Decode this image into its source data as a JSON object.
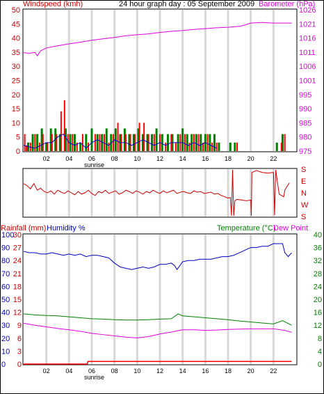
{
  "header": {
    "windspeed_label": "Windspeed (kmh)",
    "title": "24 hour graph day : 05 September 2009",
    "barometer_label": "Barometer (hPa)"
  },
  "bottom_header": {
    "rainfall_label": "Rainfall (mm)",
    "humidity_label": "Humidity %",
    "temperature_label": "Temperature (°C)",
    "dewpoint_label": "Dew Point"
  },
  "x_ticks": [
    "02",
    "04",
    "06",
    "08",
    "10",
    "12",
    "14",
    "16",
    "18",
    "20",
    "22"
  ],
  "sunrise_label": "sunrise",
  "colors": {
    "wind": "#ff0000",
    "baro": "#e000e0",
    "gust": "#008000",
    "avgwind": "#0000cc",
    "humidity": "#0000c0",
    "temperature": "#008000",
    "dewpoint": "#e000e0",
    "rain": "#ff0000",
    "grid": "#d8d8d8",
    "direction": "#cc0000"
  },
  "chart_data": [
    {
      "type": "bar",
      "title": "24 hour graph day : 05 September 2009",
      "ylabel": "Windspeed (kmh)",
      "y2label": "Barometer (hPa)",
      "xlim": [
        0,
        24
      ],
      "ylim": [
        0,
        50
      ],
      "y_ticks": [
        "0",
        "5",
        "10",
        "15",
        "20",
        "25",
        "30",
        "35",
        "40",
        "45",
        "50"
      ],
      "y2lim": [
        975,
        1026
      ],
      "y2_ticks": [
        "975",
        "980",
        "985",
        "990",
        "995",
        "1001",
        "1006",
        "1011",
        "1016",
        "1021",
        "1026"
      ],
      "grid": true,
      "series": [
        {
          "name": "Windspeed (kmh)",
          "x": [
            0.1,
            0.25,
            0.6,
            1.0,
            1.4,
            1.7,
            2.1,
            2.5,
            2.9,
            3.3,
            3.6,
            3.9,
            4.3,
            4.7,
            5.2,
            5.7,
            6.3,
            6.7,
            7.1,
            7.5,
            7.9,
            8.3,
            8.6,
            9.0,
            9.4,
            9.8,
            10.2,
            10.6,
            11.0,
            11.5,
            12.0,
            12.5,
            13.0,
            13.4,
            13.8,
            14.2,
            14.6,
            15.0,
            15.4,
            15.8,
            16.2,
            16.6,
            17.0,
            18.8,
            22.7,
            23.0
          ],
          "values": [
            6,
            2,
            3,
            6,
            3,
            6,
            3,
            6,
            6,
            14,
            18,
            6,
            6,
            3,
            6,
            3,
            6,
            6,
            6,
            3,
            6,
            10,
            6,
            6,
            6,
            6,
            10,
            10,
            6,
            6,
            6,
            3,
            6,
            3,
            6,
            6,
            3,
            6,
            6,
            3,
            6,
            3,
            3,
            3,
            3,
            6
          ]
        },
        {
          "name": "Gust",
          "x": [
            0.4,
            0.8,
            1.2,
            1.6,
            2.0,
            2.4,
            2.8,
            3.2,
            3.7,
            4.1,
            4.5,
            5.0,
            5.5,
            6.0,
            6.5,
            6.9,
            7.3,
            7.7,
            8.1,
            8.5,
            8.9,
            9.3,
            9.7,
            10.1,
            10.5,
            10.9,
            11.3,
            11.7,
            12.2,
            12.7,
            13.1,
            13.6,
            14.0,
            14.4,
            14.8,
            15.2,
            15.6,
            16.0,
            16.4,
            16.8,
            17.2,
            18.2,
            18.6,
            22.3,
            22.8
          ],
          "values": [
            3,
            6,
            6,
            8,
            3,
            8,
            8,
            6,
            8,
            6,
            6,
            3,
            6,
            8,
            6,
            6,
            8,
            6,
            8,
            6,
            8,
            6,
            6,
            8,
            6,
            6,
            6,
            8,
            6,
            6,
            6,
            6,
            8,
            6,
            6,
            6,
            6,
            6,
            6,
            6,
            3,
            3,
            3,
            3,
            6
          ]
        },
        {
          "name": "Average wind",
          "x": [
            0.0,
            1.0,
            2.0,
            2.5,
            3.0,
            3.5,
            4.0,
            4.5,
            5.0,
            5.5,
            6.0,
            6.5,
            7.0,
            7.5,
            8.0,
            8.5,
            9.0,
            9.5,
            10.0,
            10.5,
            11.0,
            11.5,
            12.0,
            12.5,
            13.0,
            13.5,
            14.0,
            14.5,
            15.0,
            15.5,
            16.0,
            16.5,
            17.0
          ],
          "values": [
            2,
            1,
            3,
            3,
            5,
            6,
            3,
            2,
            3,
            1,
            3,
            4,
            3,
            2,
            4,
            3,
            3,
            2,
            3,
            4,
            3,
            2,
            3,
            2,
            3,
            3,
            3,
            2,
            3,
            2,
            3,
            2,
            1
          ]
        },
        {
          "name": "Barometer (hPa)",
          "x": [
            0,
            0.5,
            1.0,
            1.2,
            1.5,
            2.0,
            3.0,
            4.0,
            5.0,
            6.0,
            7.0,
            8.0,
            9.0,
            10.0,
            11.0,
            12.0,
            13.0,
            14.0,
            15.0,
            16.0,
            17.0,
            18.0,
            19.0,
            19.5,
            20.0,
            21.0,
            22.0,
            23.0,
            23.6
          ],
          "values": [
            1010.5,
            1010.3,
            1010.6,
            1009.4,
            1011.2,
            1012.2,
            1013.0,
            1013.7,
            1014.3,
            1015.0,
            1015.5,
            1016.0,
            1016.6,
            1017.0,
            1017.3,
            1017.8,
            1018.2,
            1018.5,
            1018.9,
            1019.2,
            1019.5,
            1019.7,
            1020.0,
            1020.5,
            1021.2,
            1021.4,
            1021.2,
            1021.2,
            1021.2
          ]
        }
      ]
    },
    {
      "type": "line",
      "title": "",
      "xlim": [
        0,
        24
      ],
      "y_ticks": [
        "S",
        "E",
        "N",
        "W",
        "S"
      ],
      "series": [
        {
          "name": "",
          "x": [
            0.0,
            0.3,
            0.6,
            0.9,
            1.2,
            1.5,
            1.8,
            2.1,
            2.4,
            2.7,
            3.0,
            3.3,
            3.6,
            3.9,
            4.2,
            4.5,
            4.8,
            5.1,
            5.4,
            5.7,
            6.0,
            6.3,
            6.6,
            6.9,
            7.2,
            7.5,
            7.8,
            8.1,
            8.4,
            8.7,
            9.0,
            9.3,
            9.6,
            9.9,
            10.2,
            10.5,
            10.8,
            11.1,
            11.4,
            11.7,
            12.0,
            12.3,
            12.6,
            12.9,
            13.2,
            13.5,
            13.8,
            14.1,
            14.4,
            14.7,
            15.0,
            15.3,
            15.6,
            15.9,
            16.2,
            16.5,
            16.8,
            17.1,
            17.4,
            17.7,
            18.0,
            18.2,
            18.3,
            18.4,
            18.5,
            18.6,
            18.8,
            19.2,
            19.6,
            20.0,
            20.05,
            20.1,
            20.5,
            21.0,
            21.5,
            22.0,
            22.1,
            22.2,
            22.5,
            22.9,
            23.0,
            23.2,
            23.4
          ],
          "values": [
            250,
            235,
            210,
            250,
            200,
            215,
            190,
            180,
            195,
            170,
            200,
            185,
            175,
            195,
            180,
            165,
            190,
            170,
            180,
            200,
            175,
            160,
            190,
            180,
            200,
            175,
            185,
            195,
            170,
            180,
            200,
            190,
            175,
            195,
            185,
            170,
            190,
            180,
            200,
            185,
            175,
            195,
            180,
            190,
            200,
            175,
            185,
            190,
            180,
            175,
            195,
            185,
            190,
            175,
            180,
            185,
            170,
            175,
            160,
            150,
            140,
            145,
            5,
            355,
            5,
            120,
            130,
            125,
            120,
            125,
            5,
            335,
            350,
            335,
            330,
            335,
            10,
            355,
            170,
            150,
            200,
            230,
            255
          ]
        }
      ]
    },
    {
      "type": "line",
      "title": "",
      "xlim": [
        0,
        24
      ],
      "y_ticks_left": [
        "0",
        "3",
        "6",
        "9",
        "12",
        "15",
        "18",
        "21",
        "24",
        "27",
        "30"
      ],
      "y_ticks_humidity": [
        "0",
        "10",
        "20",
        "30",
        "40",
        "50",
        "60",
        "70",
        "80",
        "90",
        "100"
      ],
      "y_ticks_right": [
        "0",
        "4",
        "8",
        "12",
        "16",
        "20",
        "24",
        "28",
        "32",
        "36",
        "40"
      ],
      "ylim_rain": [
        0,
        30
      ],
      "ylim_humidity": [
        0,
        100
      ],
      "ylim_temp": [
        0,
        40
      ],
      "series": [
        {
          "name": "Humidity %",
          "x": [
            0,
            0.5,
            1.0,
            1.5,
            2.0,
            2.5,
            3.0,
            3.5,
            4.0,
            4.5,
            5.0,
            5.5,
            6.0,
            6.5,
            7.0,
            7.5,
            8.0,
            8.5,
            9.0,
            9.5,
            10.0,
            10.5,
            11.0,
            11.5,
            12.0,
            12.5,
            13.0,
            13.3,
            13.5,
            14.0,
            14.5,
            15.0,
            15.5,
            16.0,
            16.5,
            17.0,
            17.5,
            18.0,
            18.5,
            19.0,
            19.5,
            20.0,
            20.5,
            21.0,
            21.5,
            22.0,
            22.5,
            22.8,
            23.0,
            23.3,
            23.6
          ],
          "values": [
            87,
            86,
            86,
            85,
            85,
            86,
            85,
            84,
            85,
            84,
            85,
            83,
            84,
            84,
            83,
            82,
            78,
            75,
            74,
            73,
            74,
            75,
            74,
            75,
            77,
            77,
            78,
            76,
            73,
            79,
            80,
            80,
            81,
            81,
            81,
            82,
            83,
            83,
            84,
            86,
            88,
            90,
            90,
            91,
            91,
            93,
            93,
            93,
            86,
            83,
            86
          ]
        },
        {
          "name": "Temperature (°C)",
          "x": [
            0,
            1,
            2,
            3,
            4,
            5,
            6,
            7,
            8,
            9,
            10,
            11,
            12,
            13,
            13.6,
            14,
            15,
            16,
            17,
            18,
            19,
            20,
            21,
            22,
            22.8,
            23.2,
            23.6
          ],
          "values": [
            15.5,
            15.2,
            15.0,
            14.9,
            14.6,
            14.3,
            14.0,
            13.9,
            13.7,
            13.6,
            13.6,
            13.7,
            13.9,
            14.0,
            15.5,
            14.9,
            14.6,
            14.3,
            14.0,
            13.7,
            13.3,
            13.0,
            12.7,
            12.4,
            13.4,
            12.7,
            12.0
          ]
        },
        {
          "name": "Dew Point",
          "x": [
            0,
            1,
            2,
            3,
            4,
            5,
            6,
            7,
            8,
            9,
            10,
            11,
            12,
            13,
            14,
            15,
            16,
            17,
            18,
            19,
            20,
            21,
            22,
            23,
            23.6
          ],
          "values": [
            12.6,
            12.0,
            11.5,
            11.0,
            10.6,
            10.1,
            9.5,
            9.1,
            8.7,
            8.3,
            8.1,
            8.5,
            9.3,
            9.9,
            10.6,
            10.6,
            10.4,
            10.5,
            10.7,
            10.8,
            10.9,
            10.9,
            10.9,
            10.4,
            9.8
          ]
        },
        {
          "name": "Rainfall (mm)",
          "x": [
            0,
            5.6,
            5.65,
            23.6
          ],
          "values": [
            0,
            0,
            0.6,
            0.6
          ]
        }
      ]
    }
  ]
}
